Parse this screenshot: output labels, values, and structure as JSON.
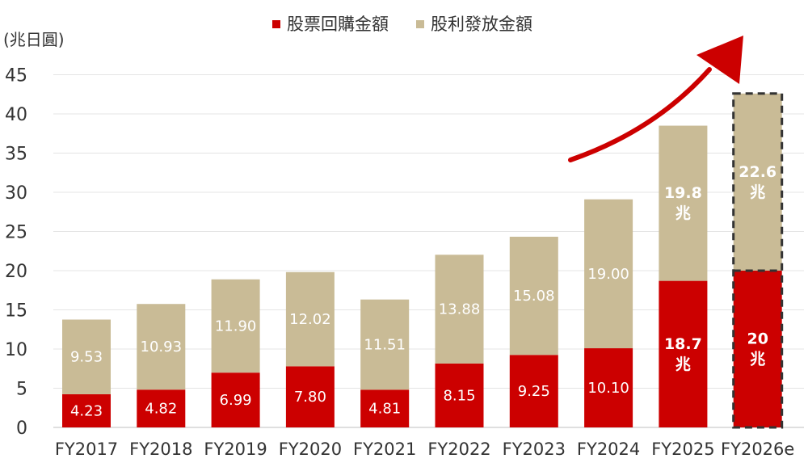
{
  "chart_data": {
    "type": "bar",
    "stacked": true,
    "unit_label": "(兆日圓)",
    "categories": [
      "FY2017",
      "FY2018",
      "FY2019",
      "FY2020",
      "FY2021",
      "FY2022",
      "FY2023",
      "FY2024",
      "FY2025",
      "FY2026e"
    ],
    "series": [
      {
        "name": "股票回購金額",
        "color": "#cc0000",
        "values": [
          4.23,
          4.82,
          6.99,
          7.8,
          4.81,
          8.15,
          9.25,
          10.1,
          18.7,
          20
        ],
        "labels": [
          "4.23",
          "4.82",
          "6.99",
          "7.80",
          "4.81",
          "8.15",
          "9.25",
          "10.10",
          "18.7\n兆",
          "20\n兆"
        ]
      },
      {
        "name": "股利發放金額",
        "color": "#c9bb96",
        "values": [
          9.53,
          10.93,
          11.9,
          12.02,
          11.51,
          13.88,
          15.08,
          19.0,
          19.8,
          22.6
        ],
        "labels": [
          "9.53",
          "10.93",
          "11.90",
          "12.02",
          "11.51",
          "13.88",
          "15.08",
          "19.00",
          "19.8\n兆",
          "22.6\n兆"
        ]
      }
    ],
    "ylim": [
      0,
      45
    ],
    "yticks": [
      0,
      5,
      10,
      15,
      20,
      25,
      30,
      35,
      40,
      45
    ],
    "grid": true,
    "legend_position": "top-center",
    "estimate_category": "FY2026e",
    "trend_arrow_color": "#cc0000"
  }
}
